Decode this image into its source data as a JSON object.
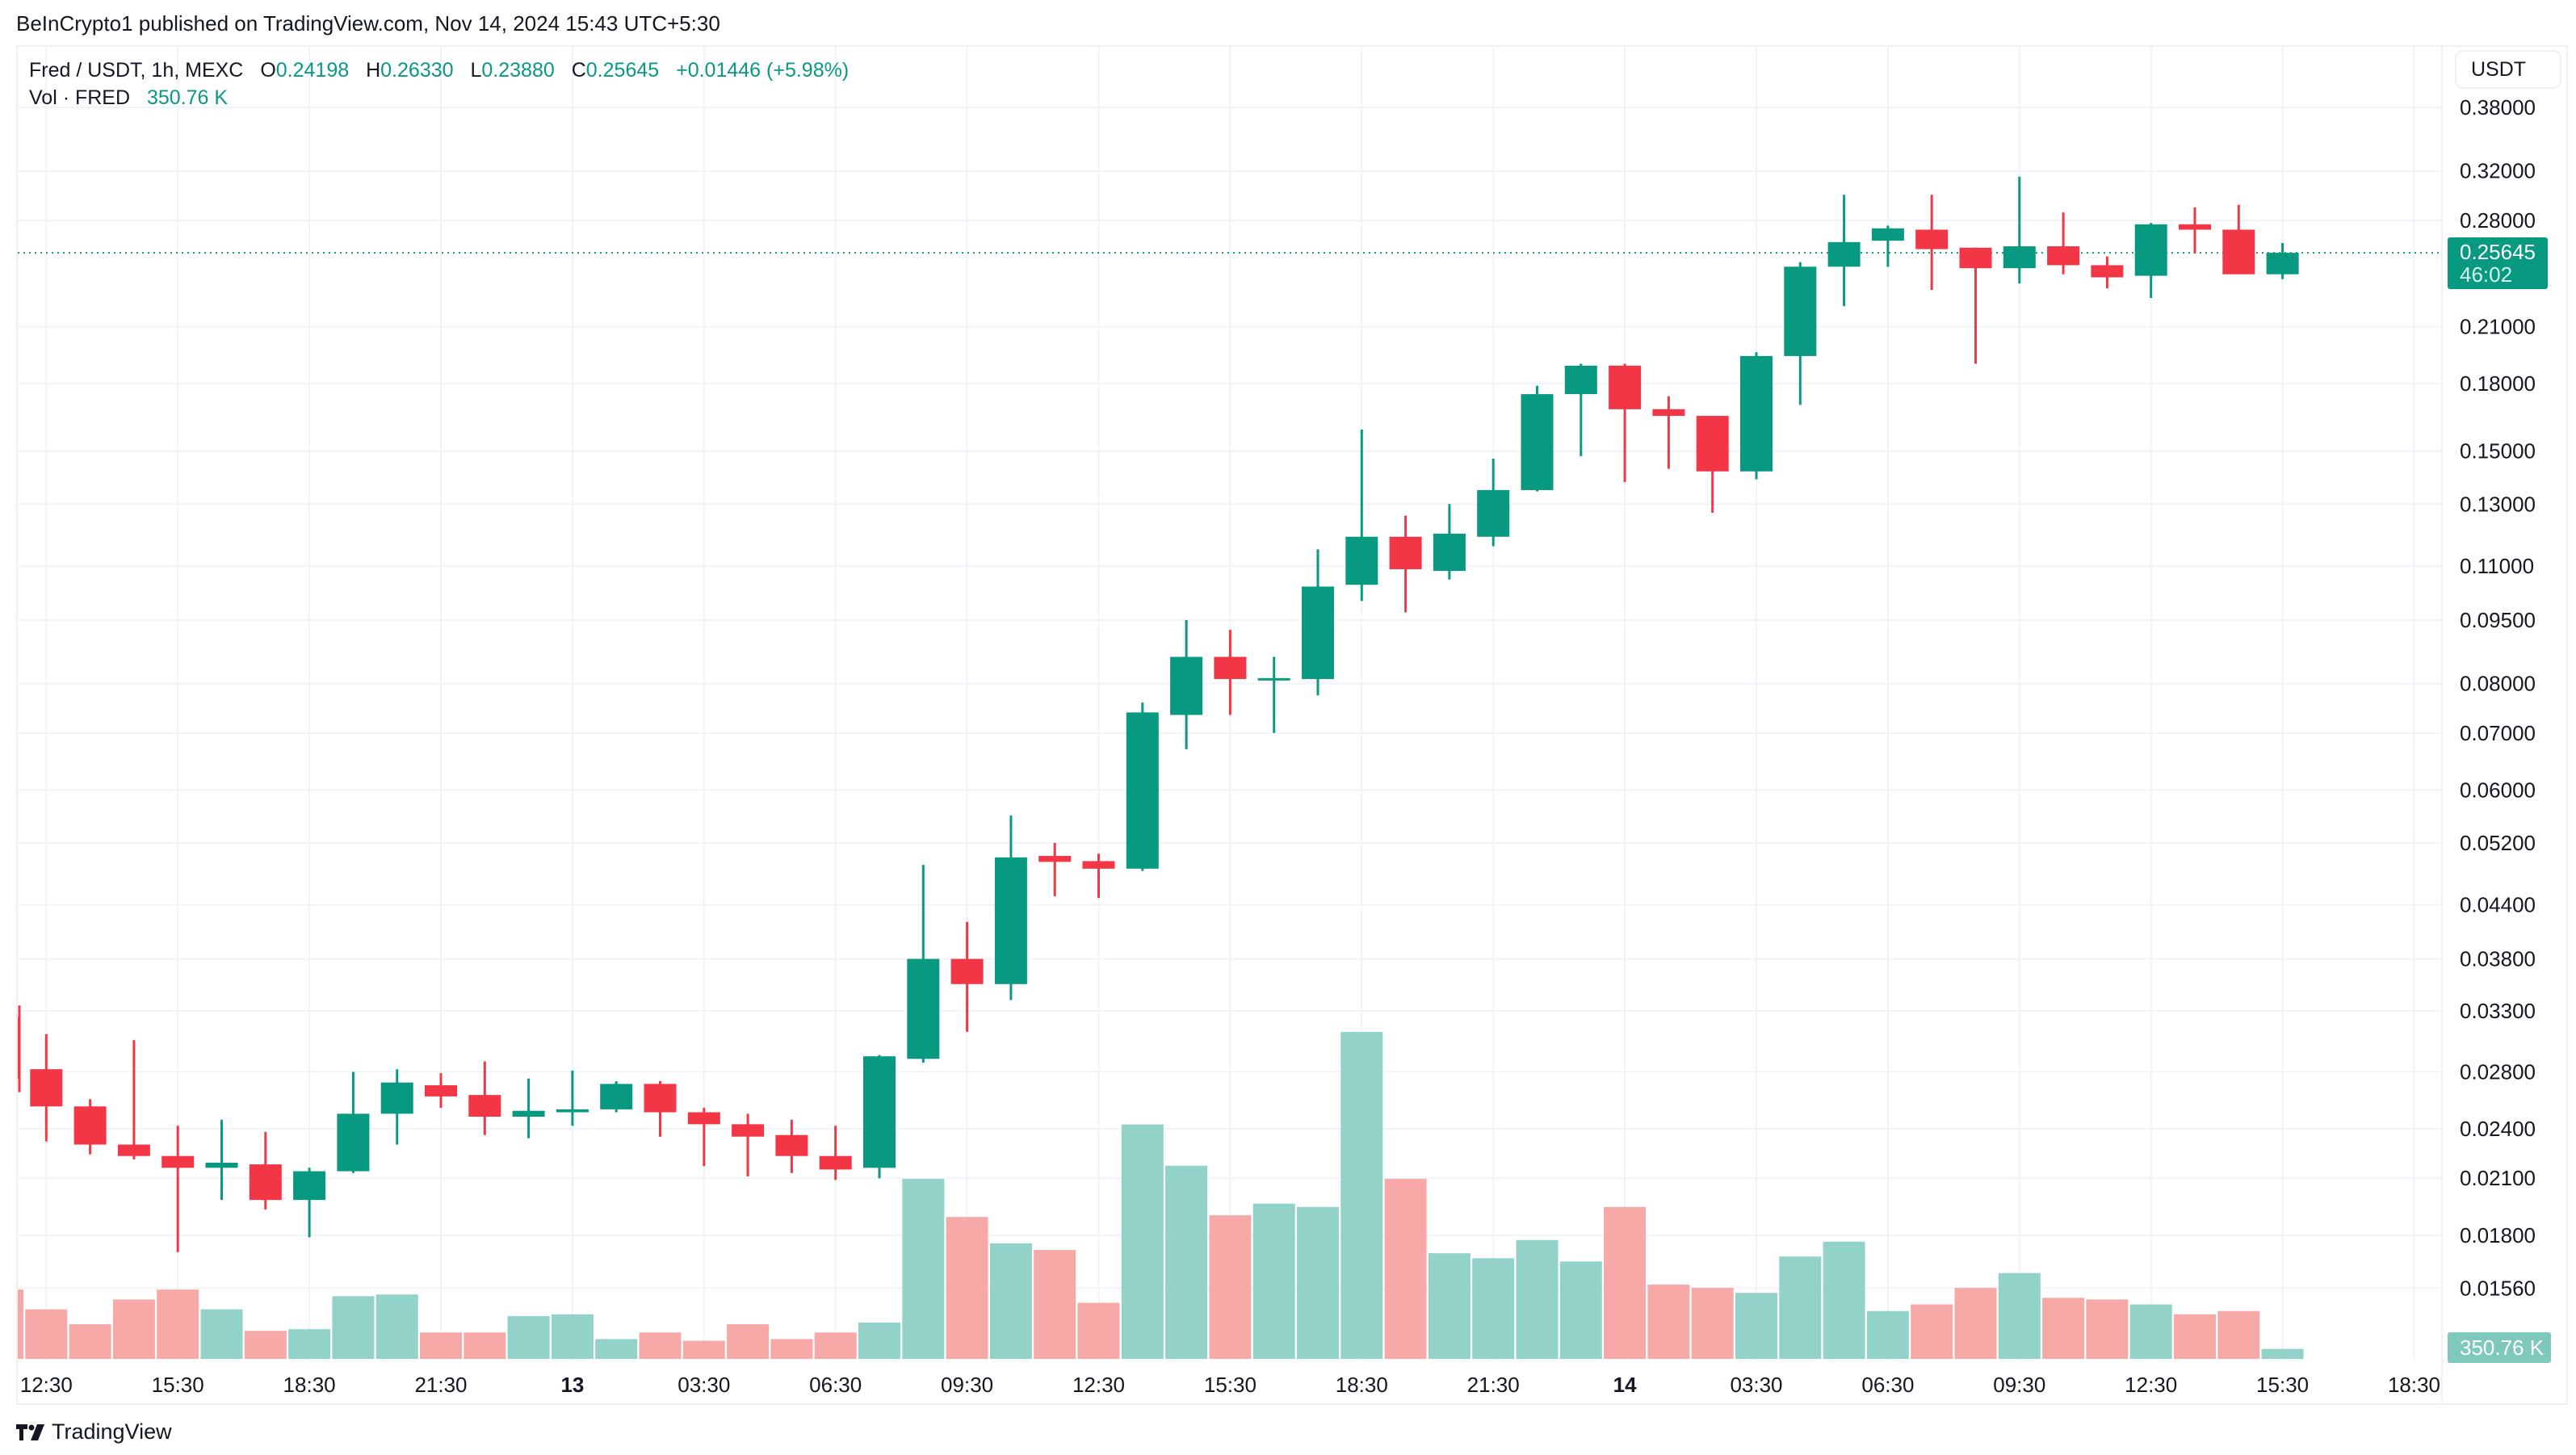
{
  "header": {
    "published": "BeInCrypto1 published on TradingView.com, Nov 14, 2024 15:43 UTC+5:30",
    "symbol": "Fred / USDT, 1h, MEXC",
    "o_label": "O",
    "o": "0.24198",
    "h_label": "H",
    "h": "0.26330",
    "l_label": "L",
    "l": "0.23880",
    "c_label": "C",
    "c": "0.25645",
    "change": "+0.01446 (+5.98%)",
    "vol_label": "Vol · FRED",
    "vol_value": "350.76 K"
  },
  "price_axis": {
    "currency": "USDT",
    "last_price": "0.25645",
    "countdown": "46:02",
    "volume_badge": "350.76 K"
  },
  "footer": {
    "brand": "TradingView"
  },
  "colors": {
    "up": "#089981",
    "down": "#f23645",
    "up_vol": "#92d2c8",
    "down_vol": "#f7a9a7"
  },
  "chart_data": {
    "type": "candlestick",
    "scale": "log",
    "grid": true,
    "ylim": [
      0.0156,
      0.38
    ],
    "y_ticks": [
      "0.38000",
      "0.32000",
      "0.28000",
      "0.21000",
      "0.18000",
      "0.15000",
      "0.13000",
      "0.11000",
      "0.09500",
      "0.08000",
      "0.07000",
      "0.06000",
      "0.05200",
      "0.04400",
      "0.03800",
      "0.03300",
      "0.02800",
      "0.02400",
      "0.02100",
      "0.01800",
      "0.01560"
    ],
    "x_ticks": [
      {
        "label": "12:30",
        "bold": false
      },
      {
        "label": "15:30",
        "bold": false
      },
      {
        "label": "18:30",
        "bold": false
      },
      {
        "label": "21:30",
        "bold": false
      },
      {
        "label": "13",
        "bold": true
      },
      {
        "label": "03:30",
        "bold": false
      },
      {
        "label": "06:30",
        "bold": false
      },
      {
        "label": "09:30",
        "bold": false
      },
      {
        "label": "12:30",
        "bold": false
      },
      {
        "label": "15:30",
        "bold": false
      },
      {
        "label": "18:30",
        "bold": false
      },
      {
        "label": "21:30",
        "bold": false
      },
      {
        "label": "14",
        "bold": true
      },
      {
        "label": "03:30",
        "bold": false
      },
      {
        "label": "06:30",
        "bold": false
      },
      {
        "label": "09:30",
        "bold": false
      },
      {
        "label": "12:30",
        "bold": false
      },
      {
        "label": "15:30",
        "bold": false
      },
      {
        "label": "18:30",
        "bold": false
      }
    ],
    "ohlc": [
      [
        0.0325,
        0.0335,
        0.0265,
        0.0275
      ],
      [
        0.0282,
        0.031,
        0.0232,
        0.0255
      ],
      [
        0.0255,
        0.026,
        0.0224,
        0.023
      ],
      [
        0.023,
        0.0305,
        0.0221,
        0.0223
      ],
      [
        0.0223,
        0.0242,
        0.0172,
        0.0216
      ],
      [
        0.0216,
        0.0246,
        0.0198,
        0.0219
      ],
      [
        0.0218,
        0.0238,
        0.0193,
        0.0198
      ],
      [
        0.0198,
        0.0216,
        0.0179,
        0.0214
      ],
      [
        0.0214,
        0.028,
        0.0213,
        0.025
      ],
      [
        0.025,
        0.0282,
        0.023,
        0.0272
      ],
      [
        0.027,
        0.0279,
        0.0254,
        0.0262
      ],
      [
        0.0263,
        0.0288,
        0.0236,
        0.0248
      ],
      [
        0.0248,
        0.0275,
        0.0234,
        0.0252
      ],
      [
        0.0251,
        0.0281,
        0.0242,
        0.0253
      ],
      [
        0.0253,
        0.0273,
        0.0251,
        0.0271
      ],
      [
        0.0271,
        0.0273,
        0.0235,
        0.0251
      ],
      [
        0.0251,
        0.0254,
        0.0217,
        0.0243
      ],
      [
        0.0243,
        0.025,
        0.0211,
        0.0235
      ],
      [
        0.0236,
        0.0246,
        0.0213,
        0.0223
      ],
      [
        0.0223,
        0.0242,
        0.0209,
        0.0215
      ],
      [
        0.0216,
        0.0293,
        0.021,
        0.0292
      ],
      [
        0.029,
        0.049,
        0.0287,
        0.038
      ],
      [
        0.038,
        0.042,
        0.0312,
        0.0355
      ],
      [
        0.0355,
        0.056,
        0.034,
        0.05
      ],
      [
        0.0502,
        0.052,
        0.045,
        0.0494
      ],
      [
        0.0495,
        0.0505,
        0.0448,
        0.0485
      ],
      [
        0.0485,
        0.076,
        0.0482,
        0.074
      ],
      [
        0.0735,
        0.095,
        0.067,
        0.086
      ],
      [
        0.086,
        0.0925,
        0.0735,
        0.081
      ],
      [
        0.081,
        0.086,
        0.07,
        0.0812
      ],
      [
        0.081,
        0.115,
        0.0775,
        0.104
      ],
      [
        0.1045,
        0.159,
        0.1,
        0.119
      ],
      [
        0.119,
        0.126,
        0.097,
        0.109
      ],
      [
        0.1085,
        0.13,
        0.106,
        0.12
      ],
      [
        0.119,
        0.147,
        0.116,
        0.135
      ],
      [
        0.135,
        0.179,
        0.1345,
        0.175
      ],
      [
        0.175,
        0.19,
        0.148,
        0.189
      ],
      [
        0.189,
        0.19,
        0.138,
        0.168
      ],
      [
        0.168,
        0.174,
        0.143,
        0.165
      ],
      [
        0.165,
        0.165,
        0.127,
        0.142
      ],
      [
        0.142,
        0.196,
        0.139,
        0.194
      ],
      [
        0.194,
        0.25,
        0.17,
        0.247
      ],
      [
        0.247,
        0.3,
        0.222,
        0.264
      ],
      [
        0.265,
        0.276,
        0.247,
        0.274
      ],
      [
        0.273,
        0.3,
        0.232,
        0.259
      ],
      [
        0.26,
        0.26,
        0.19,
        0.246
      ],
      [
        0.246,
        0.315,
        0.236,
        0.261
      ],
      [
        0.261,
        0.286,
        0.242,
        0.248
      ],
      [
        0.248,
        0.254,
        0.233,
        0.24
      ],
      [
        0.241,
        0.278,
        0.227,
        0.277
      ],
      [
        0.277,
        0.29,
        0.256,
        0.273
      ],
      [
        0.273,
        0.292,
        0.242,
        0.242
      ],
      [
        0.24198,
        0.2633,
        0.2388,
        0.25645
      ]
    ],
    "volume_k": [
      2436,
      1740,
      1218,
      2088,
      2436,
      1740,
      986,
      1044,
      2204,
      2262,
      928,
      928,
      1508,
      1566,
      696,
      928,
      638,
      1218,
      696,
      928,
      1276,
      6322,
      4988,
      4060,
      3828,
      1972,
      8236,
      6786,
      5046,
      5452,
      5336,
      11484,
      6322,
      3712,
      3538,
      4176,
      3422,
      5336,
      2610,
      2494,
      2320,
      3596,
      4118,
      1682,
      1914,
      2494,
      3016,
      2146,
      2088,
      1914,
      1566,
      1682,
      350.76
    ]
  }
}
